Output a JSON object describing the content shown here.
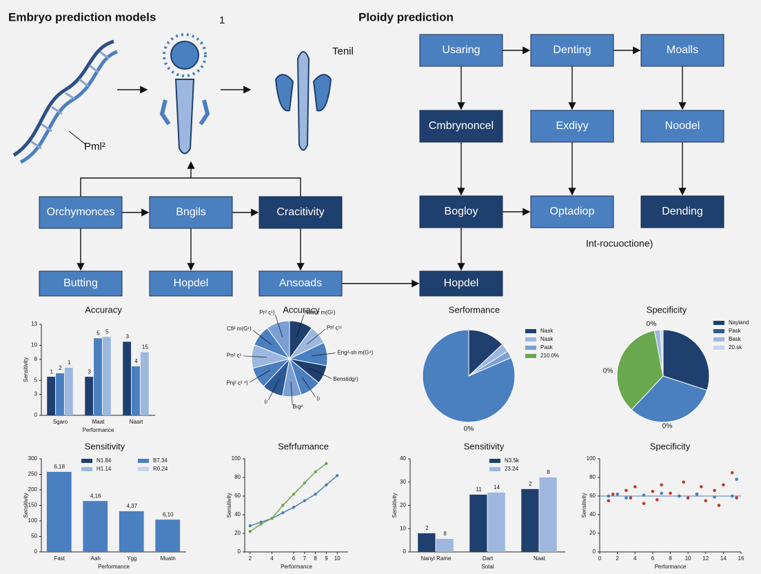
{
  "header": {
    "left_title": "Embryo prediction models",
    "right_title": "Ploidy prediction"
  },
  "illustration_labels": [
    "Pml²",
    "1",
    "Tenil"
  ],
  "nodes": [
    {
      "label": "Orchymonces",
      "color": "#4a7fc0"
    },
    {
      "label": "Bngils",
      "color": "#4a7fc0"
    },
    {
      "label": "Cracitivity",
      "color": "#1f3f6e"
    },
    {
      "label": "Butting",
      "color": "#4a7fc0"
    },
    {
      "label": "Hopdel",
      "color": "#4a7fc0"
    },
    {
      "label": "Ansoads",
      "color": "#4a7fc0"
    },
    {
      "label": "Usaring",
      "color": "#4a7fc0"
    },
    {
      "label": "Denting",
      "color": "#4a7fc0"
    },
    {
      "label": "Moalls",
      "color": "#4a7fc0"
    },
    {
      "label": "Cmbrynoncel",
      "color": "#1f3f6e"
    },
    {
      "label": "Exdiyy",
      "color": "#4a7fc0"
    },
    {
      "label": "Noodel",
      "color": "#4a7fc0"
    },
    {
      "label": "Bogloy",
      "color": "#1f3f6e"
    },
    {
      "label": "Optadiop",
      "color": "#4a7fc0"
    },
    {
      "label": "Dending",
      "color": "#1f3f6e"
    },
    {
      "label": "Hopdel",
      "color": "#1f3f6e"
    }
  ],
  "note": "Int-rocuoctione)",
  "chart_data": [
    {
      "type": "bar",
      "title": "Accuracy",
      "xlabel": "Performance",
      "ylabel": "Sensitivity",
      "categories": [
        "Sgaro",
        "Maat",
        "Naart"
      ],
      "series": [
        {
          "color": "#1f3f6e",
          "values": [
            5.5,
            5.5,
            10.5
          ]
        },
        {
          "color": "#4a7fc0",
          "values": [
            6,
            11,
            7
          ]
        },
        {
          "color": "#9db7de",
          "values": [
            6.8,
            11.2,
            9
          ]
        }
      ],
      "annotations": [
        "1",
        "2",
        "1",
        "3",
        "5",
        "5",
        "3",
        "4",
        "15"
      ],
      "ylim": [
        0,
        13
      ],
      "yticks": [
        0,
        3,
        5,
        8,
        10,
        13
      ]
    },
    {
      "type": "pie",
      "title": "Accuracy",
      "categories": [
        "Nadur m(G¹)",
        "Pr² ς¹¹",
        "Eng²-sh m(G⁴)",
        "Benstidg¹)",
        "(ı",
        "Bıg²",
        "(ı",
        "Pnj² ς² ⁴)",
        "Pn² ς¹",
        "Cfl² m(G¹)",
        "Pr² ς¹)"
      ],
      "values": [
        10,
        8,
        10,
        8,
        9,
        8,
        9,
        9,
        10,
        9,
        10
      ],
      "colors": [
        "#1f3f6e",
        "#9db7de",
        "#4a7fc0",
        "#1f3f6e",
        "#4a7fc0",
        "#7a9fd4",
        "#2d5a96",
        "#4a7fc0",
        "#9db7de",
        "#4a7fc0",
        "#7a9fd4"
      ]
    },
    {
      "type": "pie",
      "title": "Serformance",
      "values": [
        13,
        3,
        2.5,
        81.5
      ],
      "colors": [
        "#1f3f6e",
        "#9db7de",
        "#7a9fd4",
        "#4a7fc0"
      ],
      "legend": [
        {
          "name": "Nask",
          "color": "#1f3f6e"
        },
        {
          "name": "Nask",
          "color": "#9db7de"
        },
        {
          "name": "Pask",
          "color": "#7a9fd4"
        },
        {
          "name": "210.0%",
          "color": "#6aa84f"
        }
      ],
      "annotations": [
        "0%"
      ]
    },
    {
      "type": "pie",
      "title": "Specificity",
      "values": [
        30,
        32,
        35,
        2,
        1
      ],
      "colors": [
        "#1f3f6e",
        "#4a7fc0",
        "#6aa84f",
        "#9db7de",
        "#c5d5ec"
      ],
      "legend": [
        {
          "name": "Nayland",
          "color": "#1f3f6e"
        },
        {
          "name": "Pask",
          "color": "#2d5a96"
        },
        {
          "name": "Bask",
          "color": "#9db7de"
        },
        {
          "name": "20.sk",
          "color": "#c5d5ec"
        }
      ],
      "annotations": [
        "0%",
        "0%",
        "0%"
      ]
    },
    {
      "type": "bar",
      "title": "Sensitivity",
      "xlabel": "Performance",
      "ylabel": "Sensitivity",
      "categories": [
        "Fast",
        "Aah",
        "Ygg",
        "Muatn"
      ],
      "series": [
        {
          "color": "#4a7fc0",
          "values": [
            258,
            164,
            131,
            104
          ]
        }
      ],
      "annotations": [
        "6,18",
        "4,16",
        "4,37",
        "6,10"
      ],
      "legend": [
        {
          "name": "N1.84",
          "color": "#1f3f6e"
        },
        {
          "name": "B7.34",
          "color": "#4a7fc0"
        },
        {
          "name": "H1.14",
          "color": "#9db7de"
        },
        {
          "name": "R0.24",
          "color": "#c5d5ec"
        }
      ],
      "ylim": [
        0,
        300
      ],
      "yticks": [
        0,
        50,
        100,
        150,
        200,
        250,
        300
      ]
    },
    {
      "type": "line",
      "title": "Sefrfumance",
      "xlabel": "Performance",
      "ylabel": "Sensitivity",
      "series": [
        {
          "color": "#4a7fc0",
          "x": [
            2,
            3,
            4,
            5,
            6,
            7,
            8,
            9,
            10
          ],
          "values": [
            28,
            32,
            36,
            42,
            48,
            55,
            62,
            72,
            82
          ]
        },
        {
          "color": "#6aa84f",
          "x": [
            2,
            3,
            4,
            5,
            6,
            7,
            8,
            9
          ],
          "values": [
            22,
            30,
            36,
            50,
            62,
            74,
            86,
            95
          ]
        }
      ],
      "xlim": [
        1.5,
        11
      ],
      "xticks": [
        2,
        4,
        6,
        7,
        8,
        9,
        10
      ],
      "ylim": [
        0,
        100
      ],
      "yticks": [
        0,
        20,
        40,
        60,
        80,
        100
      ]
    },
    {
      "type": "bar",
      "title": "Sensitivity",
      "xlabel": "Sotal",
      "ylabel": "Sensitivity",
      "categories": [
        "Nanyl Rame",
        "Dart",
        "Naat"
      ],
      "series": [
        {
          "name": "N3.5k",
          "color": "#1f3f6e",
          "values": [
            8,
            24.6,
            27
          ]
        },
        {
          "name": "23.24",
          "color": "#9db7de",
          "values": [
            5.6,
            25.5,
            32
          ]
        }
      ],
      "annotations": [
        "2",
        "8",
        "11",
        "14",
        "2",
        "8"
      ],
      "ylim": [
        0,
        40
      ],
      "yticks": [
        0,
        10,
        20,
        30,
        40
      ]
    },
    {
      "type": "scatter",
      "title": "Specificity",
      "xlabel": "Performance",
      "ylabel": "Sensitivity",
      "series": [
        {
          "color": "#c0392b",
          "x": [
            1,
            1.5,
            3,
            3.5,
            4,
            5,
            6,
            6.5,
            7,
            8,
            9,
            9.5,
            10,
            11,
            11.5,
            12,
            13,
            13.5,
            14,
            15,
            15.5
          ],
          "values": [
            55,
            62,
            66,
            58,
            70,
            52,
            65,
            56,
            72,
            63,
            60,
            75,
            58,
            62,
            70,
            55,
            66,
            50,
            72,
            85,
            58
          ]
        },
        {
          "color": "#4a7fc0",
          "x": [
            1,
            2,
            3,
            5,
            7,
            9,
            11,
            13,
            15,
            15.5
          ],
          "values": [
            60,
            62,
            58,
            61,
            63,
            60,
            62,
            59,
            60,
            78
          ]
        }
      ],
      "reference_line": 60,
      "xlim": [
        0,
        16
      ],
      "xticks": [
        0,
        2,
        4,
        6,
        8,
        10,
        12,
        14,
        16
      ],
      "ylim": [
        0,
        100
      ],
      "yticks": [
        0,
        20,
        40,
        60,
        80,
        100
      ]
    }
  ]
}
